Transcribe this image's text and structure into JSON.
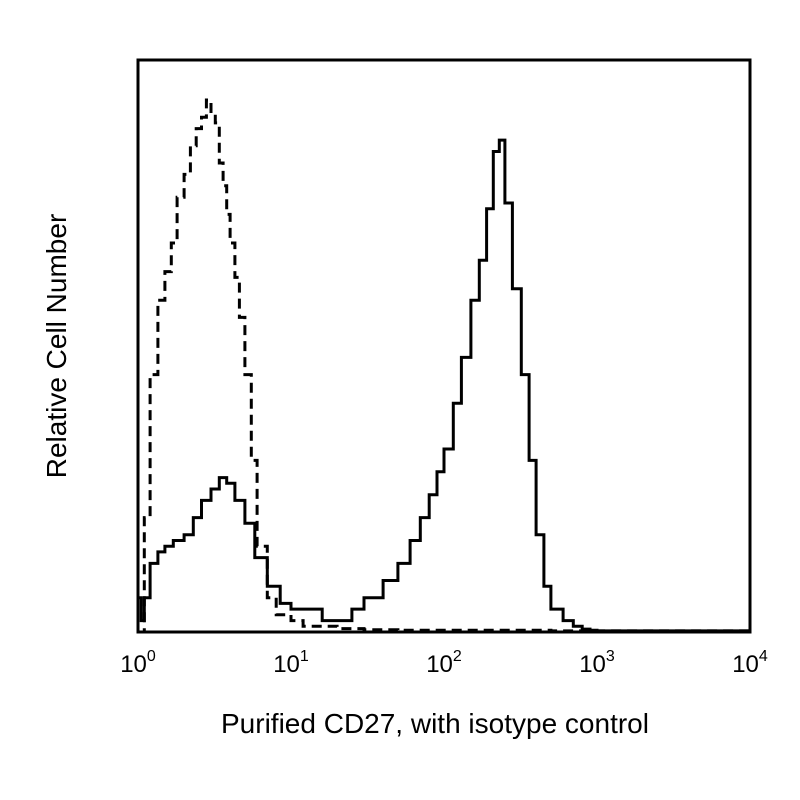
{
  "chart_data": {
    "type": "line",
    "title": "",
    "xlabel": "Purified CD27, with isotype control",
    "ylabel": "Relative Cell Number",
    "x_scale": "log",
    "xlim": [
      1,
      10000
    ],
    "ylim": [
      0,
      100
    ],
    "x_ticks": [
      {
        "value": 1,
        "base": "10",
        "exp": "0"
      },
      {
        "value": 10,
        "base": "10",
        "exp": "1"
      },
      {
        "value": 100,
        "base": "10",
        "exp": "2"
      },
      {
        "value": 1000,
        "base": "10",
        "exp": "3"
      },
      {
        "value": 10000,
        "base": "10",
        "exp": "4"
      }
    ],
    "y_ticks_shown": false,
    "grid": false,
    "legend": "none",
    "colors": {
      "line": "#000000",
      "frame": "#000000",
      "background": "#ffffff"
    },
    "series": [
      {
        "style": "dashed",
        "x": [
          1,
          1.1,
          1.2,
          1.35,
          1.5,
          1.65,
          1.8,
          2.0,
          2.2,
          2.4,
          2.6,
          2.8,
          3.0,
          3.2,
          3.4,
          3.6,
          3.8,
          4.0,
          4.3,
          4.6,
          5.0,
          5.5,
          6.0,
          7.0,
          8.0,
          10,
          12,
          15,
          20,
          30,
          50,
          100,
          200,
          500,
          1000,
          10000
        ],
        "y": [
          0,
          20,
          45,
          58,
          63,
          68,
          76,
          80,
          85,
          88,
          90,
          93,
          91,
          89,
          82,
          78,
          73,
          68,
          62,
          55,
          45,
          30,
          15,
          6,
          3,
          2,
          1,
          1,
          0.6,
          0.4,
          0.3,
          0.3,
          0.3,
          0.2,
          0.2,
          0
        ]
      },
      {
        "style": "solid",
        "x": [
          1,
          1.05,
          1.1,
          1.2,
          1.35,
          1.5,
          1.7,
          2.0,
          2.3,
          2.6,
          3.0,
          3.4,
          3.8,
          4.3,
          5.0,
          5.8,
          7.0,
          8.5,
          10,
          13,
          16,
          20,
          25,
          30,
          40,
          50,
          60,
          70,
          80,
          90,
          100,
          115,
          130,
          150,
          170,
          190,
          210,
          230,
          250,
          280,
          320,
          360,
          400,
          450,
          500,
          600,
          700,
          800,
          900,
          1000,
          10000
        ],
        "y": [
          6,
          2,
          6,
          12,
          14,
          15,
          16,
          17,
          20,
          23,
          25,
          27,
          26,
          23,
          19,
          13,
          8,
          5,
          4,
          4,
          2,
          2,
          4,
          6,
          9,
          12,
          16,
          20,
          24,
          28,
          32,
          40,
          48,
          58,
          65,
          74,
          84,
          86,
          75,
          60,
          45,
          30,
          17,
          8,
          4,
          2,
          1,
          0.5,
          0.3,
          0.2,
          0
        ]
      }
    ]
  }
}
